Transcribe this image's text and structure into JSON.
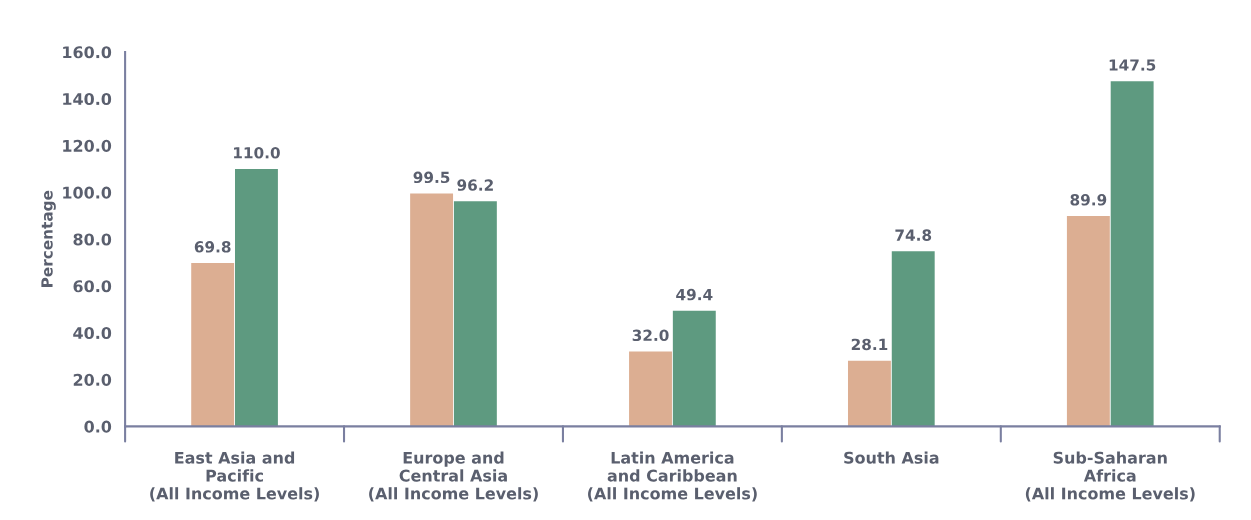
{
  "chart_data": {
    "type": "bar",
    "ylabel": "Percentage",
    "categories": [
      "East Asia and\nPacific\n(All Income Levels)",
      "Europe and\nCentral Asia\n(All Income Levels)",
      "Latin America\nand Caribbean\n(All Income Levels)",
      "South Asia",
      "Sub-Saharan\nAfrica\n(All Income Levels)"
    ],
    "series": [
      {
        "color": "#dcae92",
        "values": [
          69.8,
          99.5,
          32.0,
          28.1,
          89.9
        ],
        "value_labels": [
          "69.8",
          "99.5",
          "32.0",
          "28.1",
          "89.9"
        ]
      },
      {
        "color": "#5e9a80",
        "values": [
          110.0,
          96.2,
          49.4,
          74.8,
          147.5
        ],
        "value_labels": [
          "110.0",
          "96.2",
          "49.4",
          "74.8",
          "147.5"
        ]
      }
    ],
    "ylim": [
      0,
      160
    ],
    "yticks": [
      {
        "value": 0,
        "label": "0.0"
      },
      {
        "value": 20,
        "label": "20.0"
      },
      {
        "value": 40,
        "label": "40.0"
      },
      {
        "value": 60,
        "label": "60.0"
      },
      {
        "value": 80,
        "label": "80.0"
      },
      {
        "value": 100,
        "label": "100.0"
      },
      {
        "value": 120,
        "label": "120.0"
      },
      {
        "value": 140,
        "label": "140.0"
      },
      {
        "value": 160,
        "label": "160.0"
      }
    ],
    "grid": false,
    "legend": false
  }
}
